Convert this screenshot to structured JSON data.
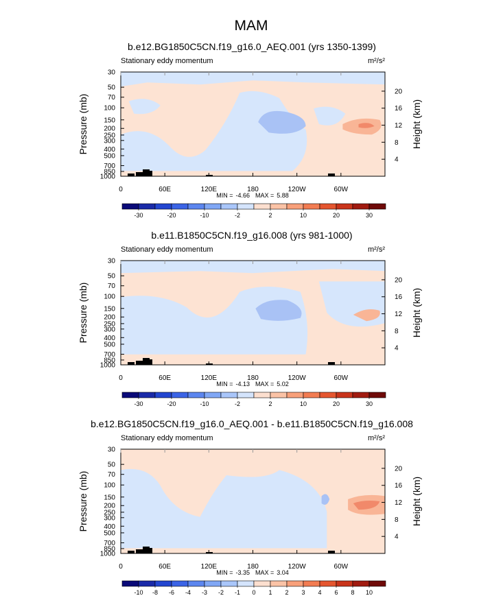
{
  "chart_data": [
    {
      "type": "contour",
      "title": "MAM",
      "subtitle": "b.e12.BG1850C5CN.f19_g16.0_AEQ.001 (yrs 1350-1399)",
      "left_label": "Stationary eddy momentum",
      "units": "m²/s²",
      "ylabel": "Pressure (mb)",
      "y2label": "Height (km)",
      "log_y": true,
      "xlim": [
        0,
        360
      ],
      "xticks": [
        0,
        {
          "value": 60,
          "label": "60E"
        },
        {
          "value": 120,
          "label": "120E"
        },
        180,
        {
          "value": 240,
          "label": "120W"
        },
        {
          "value": 300,
          "label": "60W"
        }
      ],
      "ylim": [
        1000,
        30
      ],
      "yticks": [
        30,
        50,
        70,
        100,
        150,
        200,
        250,
        300,
        400,
        500,
        700,
        850,
        1000
      ],
      "y2lim": [
        0,
        24.5
      ],
      "y2ticks": [
        4,
        8,
        12,
        16,
        20
      ],
      "min_label": "MIN =",
      "min": -4.66,
      "max_label": "MAX =",
      "max": 5.88,
      "colorbar_ticks": [
        -30,
        -20,
        -10,
        -2,
        2,
        10,
        20,
        30
      ]
    },
    {
      "type": "contour",
      "subtitle": "b.e11.B1850C5CN.f19_g16.008 (yrs 981-1000)",
      "left_label": "Stationary eddy momentum",
      "units": "m²/s²",
      "ylabel": "Pressure (mb)",
      "y2label": "Height (km)",
      "log_y": true,
      "xlim": [
        0,
        360
      ],
      "xticks": [
        0,
        {
          "value": 60,
          "label": "60E"
        },
        {
          "value": 120,
          "label": "120E"
        },
        180,
        {
          "value": 240,
          "label": "120W"
        },
        {
          "value": 300,
          "label": "60W"
        }
      ],
      "ylim": [
        1000,
        30
      ],
      "yticks": [
        30,
        50,
        70,
        100,
        150,
        200,
        250,
        300,
        400,
        500,
        700,
        850,
        1000
      ],
      "y2lim": [
        0,
        24.5
      ],
      "y2ticks": [
        4,
        8,
        12,
        16,
        20
      ],
      "min_label": "MIN =",
      "min": -4.13,
      "max_label": "MAX =",
      "max": 5.02,
      "colorbar_ticks": [
        -30,
        -20,
        -10,
        -2,
        2,
        10,
        20,
        30
      ]
    },
    {
      "type": "contour",
      "subtitle": "b.e12.BG1850C5CN.f19_g16.0_AEQ.001 - b.e11.B1850C5CN.f19_g16.008",
      "left_label": "Stationary eddy momentum",
      "units": "m²/s²",
      "ylabel": "Pressure (mb)",
      "y2label": "Height (km)",
      "log_y": true,
      "xlim": [
        0,
        360
      ],
      "xticks": [
        0,
        {
          "value": 60,
          "label": "60E"
        },
        {
          "value": 120,
          "label": "120E"
        },
        180,
        {
          "value": 240,
          "label": "120W"
        },
        {
          "value": 300,
          "label": "60W"
        }
      ],
      "ylim": [
        1000,
        30
      ],
      "yticks": [
        30,
        50,
        70,
        100,
        150,
        200,
        250,
        300,
        400,
        500,
        700,
        850,
        1000
      ],
      "y2lim": [
        0,
        24.5
      ],
      "y2ticks": [
        4,
        8,
        12,
        16,
        20
      ],
      "min_label": "MIN =",
      "min": -3.35,
      "max_label": "MAX =",
      "max": 3.04,
      "colorbar_ticks": [
        -10,
        -8,
        -6,
        -4,
        -3,
        -2,
        -1,
        0,
        1,
        2,
        3,
        4,
        6,
        8,
        10
      ]
    }
  ]
}
